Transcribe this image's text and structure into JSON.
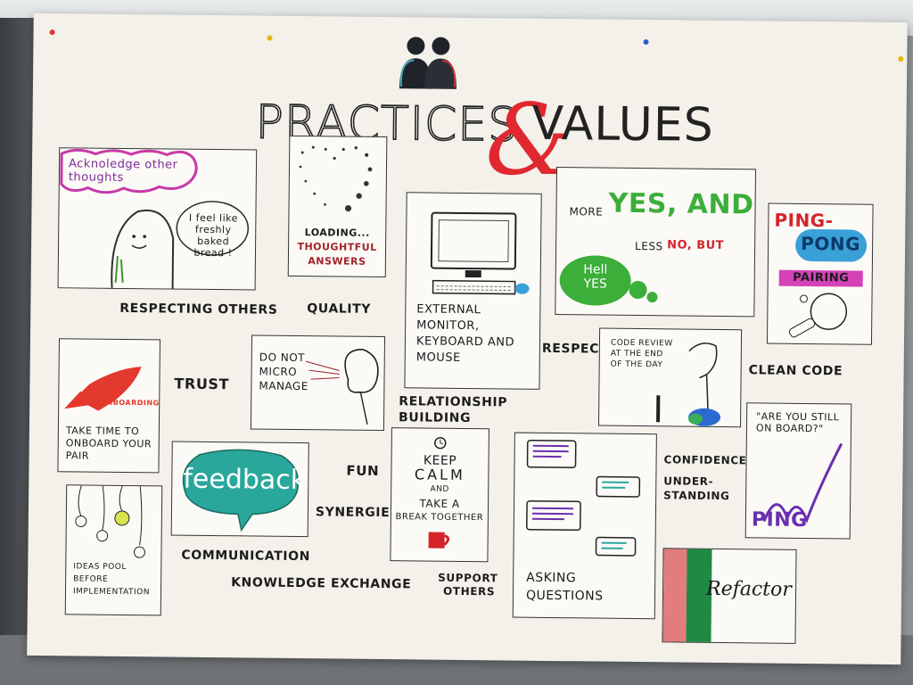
{
  "title": {
    "practices": "PRACTICES",
    "amp": "&",
    "values": "VALUES"
  },
  "cards": {
    "respecting": {
      "cloud_text": "Acknoledge other thoughts",
      "speech": "I feel like freshly baked bread !"
    },
    "quality": {
      "line1": "LOADING...",
      "line2": "THOUGHTFUL",
      "line3": "ANSWERS"
    },
    "monitor": {
      "text": "EXTERNAL MONITOR, KEYBOARD AND MOUSE"
    },
    "yes_and": {
      "more": "MORE",
      "yes": "YES, AND",
      "less": "LESS",
      "no": "NO, BUT",
      "hell": "Hell",
      "hell_yes": "YES"
    },
    "ping_pong": {
      "ping": "PING-",
      "pong": "PONG",
      "pairing": "PAIRING"
    },
    "onboarding": {
      "rocket": "ONBOARDING",
      "text": "TAKE TIME TO ONBOARD YOUR PAIR"
    },
    "micromanage": {
      "text": "DO NOT MICRO MANAGE"
    },
    "code_review": {
      "text": "CODE REVIEW AT THE END OF THE DAY"
    },
    "still_on_board": {
      "question": "\"ARE YOU STILL ON BOARD?\"",
      "ping": "PING"
    },
    "feedback": {
      "text": "feedback"
    },
    "keep_calm": {
      "keep": "KEEP",
      "calm": "CALM",
      "and": "AND",
      "take": "TAKE A",
      "break": "BREAK TOGETHER"
    },
    "asking": {
      "text": "ASKING QUESTIONS"
    },
    "ideas": {
      "text": "IDEAS POOL BEFORE IMPLEMENTATION"
    },
    "refactor": {
      "text": "Refactor"
    }
  },
  "labels": {
    "respecting_others": "RESPECTING OTHERS",
    "quality": "QUALITY",
    "respect": "RESPECT",
    "clean_code": "CLEAN CODE",
    "trust": "TRUST",
    "relationship_building": "RELATIONSHIP BUILDING",
    "confidence": "CONFIDENCE",
    "understanding_1": "UNDER-",
    "understanding_2": "STANDING",
    "fun": "FUN",
    "synergies": "SYNERGIES",
    "communication": "COMMUNICATION",
    "knowledge_exchange": "KNOWLEDGE EXCHANGE",
    "support_others_1": "SUPPORT",
    "support_others_2": "OTHERS"
  },
  "colors": {
    "title_amp": "#e0282e",
    "yes_green": "#3cae3a",
    "no_red": "#d5232b",
    "feedback_teal": "#2aa79b",
    "rocket_red": "#e3382e",
    "pong_blue": "#3aa0d8",
    "pairing_magenta": "#d442b8",
    "ping_purple": "#6a2fb0",
    "refactor_red": "#e27c7d",
    "refactor_green": "#1f8a43"
  }
}
